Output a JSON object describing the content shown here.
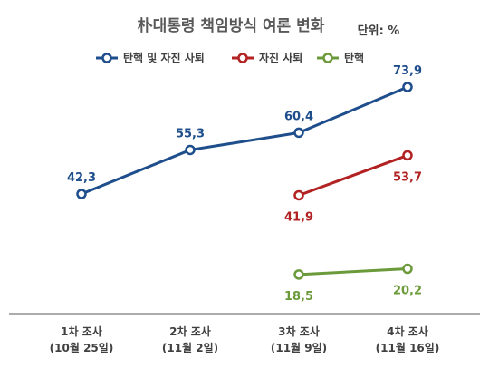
{
  "chart_data": {
    "type": "line",
    "title": "朴대통령 책임방식 여론 변화",
    "unit_label": "단위: %",
    "categories": [
      "1차 조사\n(10월 25일)",
      "2차 조사\n(11월 2일)",
      "3차 조사\n(11월 9일)",
      "4차 조사\n(11월 16일)"
    ],
    "series": [
      {
        "name": "탄핵 및 자진 사퇴",
        "color": "#1f4e8c",
        "values": [
          42.3,
          55.3,
          60.4,
          73.9
        ],
        "labels": [
          "42,3",
          "55,3",
          "60,4",
          "73,9"
        ]
      },
      {
        "name": "자진 사퇴",
        "color": "#b22222",
        "values": [
          null,
          null,
          41.9,
          53.7
        ],
        "labels": [
          "",
          "",
          "41,9",
          "53,7"
        ]
      },
      {
        "name": "탄핵",
        "color": "#6b9a3a",
        "values": [
          null,
          null,
          18.5,
          20.2
        ],
        "labels": [
          "",
          "",
          "18,5",
          "20,2"
        ]
      }
    ],
    "legend_position": "top",
    "grid": false
  }
}
